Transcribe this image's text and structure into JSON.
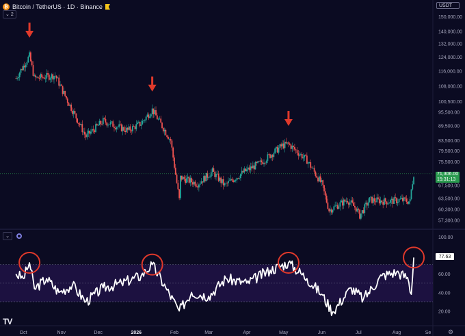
{
  "header": {
    "coin_glyph": "₿",
    "title": "Bitcoin / TetherUS · 1D · Binance",
    "indicator_badge": "2"
  },
  "currency_badge": "USDT",
  "price_scale": [
    "150,000.00",
    "140,000.00",
    "132,000.00",
    "124,000.00",
    "116,000.00",
    "108,000.00",
    "100,500.00",
    "95,500.00",
    "89,500.00",
    "83,500.00",
    "79,500.00",
    "75,500.00",
    "67,500.00",
    "63,500.00",
    "60,300.00",
    "57,300.00"
  ],
  "current_price": {
    "value": "71,306.00",
    "countdown": "15:31:13"
  },
  "rsi_scale": [
    "100.00",
    "60.00",
    "40.00",
    "20.00"
  ],
  "rsi_value": "77.63",
  "time_axis": [
    "Oct",
    "Nov",
    "Dec",
    "2026",
    "Feb",
    "Mar",
    "Apr",
    "May",
    "Jun",
    "Jul",
    "Aug",
    "Se"
  ],
  "colors": {
    "background": "#0b0b22",
    "up": "#26a69a",
    "down": "#ef5350",
    "rsi_line": "#ffffff",
    "rsi_band": "#1c1140",
    "markers": "#e0392b",
    "price_tag": "#2a9a4f"
  },
  "chart_data": [
    {
      "type": "candlestick",
      "title": "Bitcoin / TetherUS · 1D · Binance",
      "yaxis": "log",
      "ylim": [
        55000,
        155000
      ],
      "x": [
        "2025-09-25",
        "2025-10-06",
        "2025-10-10",
        "2025-10-27",
        "2025-11-04",
        "2025-11-21",
        "2025-12-05",
        "2025-12-25",
        "2026-01-05",
        "2026-01-14",
        "2026-01-29",
        "2026-02-05",
        "2026-02-06",
        "2026-02-20",
        "2026-03-04",
        "2026-03-14",
        "2026-03-30",
        "2026-04-12",
        "2026-04-30",
        "2026-05-05",
        "2026-05-20",
        "2026-06-01",
        "2026-06-07",
        "2026-06-22",
        "2026-06-29",
        "2026-07-02",
        "2026-07-10",
        "2026-07-25",
        "2026-08-05",
        "2026-08-12",
        "2026-08-13",
        "2026-08-15"
      ],
      "close": [
        112000,
        124500,
        112000,
        113500,
        103000,
        85000,
        91500,
        87500,
        90500,
        96500,
        83500,
        63000,
        70000,
        68000,
        72000,
        67500,
        72000,
        75000,
        81500,
        82000,
        76000,
        68000,
        60000,
        63000,
        60500,
        58500,
        63000,
        62500,
        63000,
        62500,
        66000,
        71306
      ],
      "markers": [
        "2025-10-06",
        "2026-01-14",
        "2026-05-05"
      ]
    },
    {
      "type": "line",
      "title": "RSI",
      "ylim": [
        10,
        100
      ],
      "x": [
        "2025-09-25",
        "2025-10-01",
        "2025-10-06",
        "2025-10-10",
        "2025-10-20",
        "2025-10-30",
        "2025-11-10",
        "2025-11-21",
        "2025-12-05",
        "2025-12-20",
        "2026-01-05",
        "2026-01-14",
        "2026-01-25",
        "2026-02-05",
        "2026-02-15",
        "2026-03-01",
        "2026-03-15",
        "2026-04-01",
        "2026-04-20",
        "2026-05-05",
        "2026-05-20",
        "2026-06-01",
        "2026-06-10",
        "2026-06-25",
        "2026-07-05",
        "2026-07-20",
        "2026-08-01",
        "2026-08-10",
        "2026-08-13",
        "2026-08-15"
      ],
      "y": [
        60,
        55,
        72,
        44,
        55,
        40,
        48,
        30,
        45,
        50,
        58,
        70,
        45,
        20,
        40,
        36,
        55,
        50,
        64,
        72,
        55,
        38,
        19,
        45,
        33,
        58,
        62,
        56,
        38,
        77.63
      ],
      "bands": [
        30,
        70
      ],
      "markers": [
        "2025-10-06",
        "2026-01-14",
        "2026-05-05",
        "2026-08-15"
      ]
    }
  ]
}
